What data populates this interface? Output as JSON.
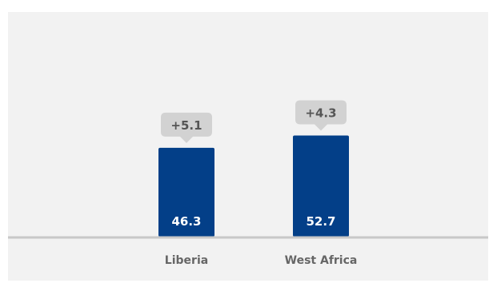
{
  "colors": {
    "panel_background": "#f2f2f2",
    "bar": "#033f88",
    "bar_label": "#ffffff",
    "baseline": "#c8c8c8",
    "change_badge": "#d2d2d2",
    "change_text": "#555555",
    "category_text": "#666666"
  },
  "chart_data": {
    "type": "bar",
    "categories": [
      "Liberia",
      "West Africa"
    ],
    "values": [
      46.3,
      52.7
    ],
    "value_labels": [
      "46.3",
      "52.7"
    ],
    "change_labels": [
      "+5.1",
      "+4.3"
    ],
    "title": "",
    "xlabel": "",
    "ylabel": "",
    "ylim": [
      0,
      60
    ],
    "grid": false,
    "legend": "none"
  }
}
